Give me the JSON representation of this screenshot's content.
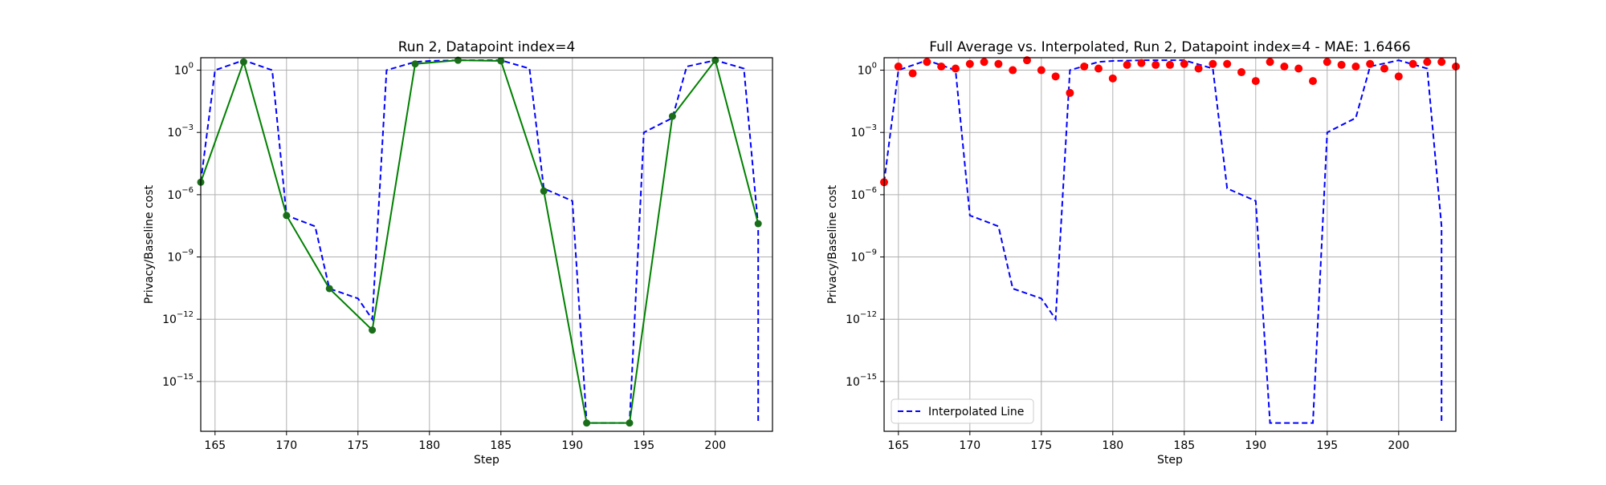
{
  "chart_data": [
    {
      "type": "line",
      "title": "Run 2, Datapoint index=4",
      "xlabel": "Step",
      "ylabel": "Privacy/Baseline cost",
      "xlim": [
        164,
        204
      ],
      "yscale": "log",
      "ylim_exp": [
        -17.4,
        0.6
      ],
      "grid": true,
      "x_ticks": [
        "165",
        "170",
        "175",
        "180",
        "185",
        "190",
        "195",
        "200"
      ],
      "y_ticks": [
        {
          "base": "10",
          "exp": "0"
        },
        {
          "base": "10",
          "exp": "−3"
        },
        {
          "base": "10",
          "exp": "−6"
        },
        {
          "base": "10",
          "exp": "−9"
        },
        {
          "base": "10",
          "exp": "−12"
        },
        {
          "base": "10",
          "exp": "−15"
        }
      ],
      "series": [
        {
          "style": "dashed",
          "color": "#0000ff",
          "x": [
            164,
            165,
            167,
            169,
            170,
            172,
            173,
            175,
            176,
            177,
            179,
            180,
            182,
            185,
            187,
            188,
            190,
            191,
            194,
            195,
            197,
            198,
            200,
            202,
            203,
            203
          ],
          "y": [
            4e-06,
            1.0,
            3.0,
            1.0,
            1e-07,
            3e-08,
            3e-11,
            1e-11,
            1e-12,
            1.0,
            2.5,
            2.8,
            3.0,
            3.0,
            1.2,
            2e-06,
            5e-07,
            1e-17,
            1e-17,
            0.001,
            0.005,
            1.5,
            3.0,
            1.2,
            3e-08,
            1e-17
          ]
        },
        {
          "style": "solid-markers",
          "color": "#008000",
          "x": [
            164,
            167,
            170,
            173,
            176,
            179,
            182,
            185,
            188,
            191,
            194,
            197,
            200,
            203
          ],
          "y": [
            4e-06,
            2.5,
            1e-07,
            3e-11,
            3e-13,
            2.0,
            3.0,
            2.8,
            1.5e-06,
            1e-17,
            1e-17,
            0.006,
            3.0,
            4e-08
          ]
        }
      ]
    },
    {
      "type": "line",
      "title": "Full Average vs. Interpolated, Run 2, Datapoint index=4 - MAE: 1.6466",
      "xlabel": "Step",
      "ylabel": "Privacy/Baseline cost",
      "xlim": [
        164,
        204
      ],
      "yscale": "log",
      "ylim_exp": [
        -17.4,
        0.6
      ],
      "grid": true,
      "legend": "lower-left",
      "x_ticks": [
        "165",
        "170",
        "175",
        "180",
        "185",
        "190",
        "195",
        "200"
      ],
      "y_ticks": [
        {
          "base": "10",
          "exp": "0"
        },
        {
          "base": "10",
          "exp": "−3"
        },
        {
          "base": "10",
          "exp": "−6"
        },
        {
          "base": "10",
          "exp": "−9"
        },
        {
          "base": "10",
          "exp": "−12"
        },
        {
          "base": "10",
          "exp": "−15"
        }
      ],
      "series": [
        {
          "name": "Interpolated Line",
          "style": "dashed",
          "color": "#0000ff",
          "x": [
            164,
            165,
            167,
            169,
            170,
            172,
            173,
            175,
            176,
            177,
            179,
            180,
            182,
            185,
            187,
            188,
            190,
            191,
            194,
            195,
            197,
            198,
            200,
            202,
            203,
            203
          ],
          "y": [
            4e-06,
            1.0,
            3.0,
            1.0,
            1e-07,
            3e-08,
            3e-11,
            1e-11,
            1e-12,
            1.0,
            2.5,
            2.8,
            3.0,
            3.0,
            1.2,
            2e-06,
            5e-07,
            1e-17,
            1e-17,
            0.001,
            0.005,
            1.5,
            3.0,
            1.2,
            3e-08,
            1e-17
          ]
        },
        {
          "style": "scatter",
          "color": "#ff0000",
          "x": [
            164,
            165,
            166,
            167,
            168,
            169,
            170,
            171,
            172,
            173,
            174,
            175,
            176,
            177,
            178,
            179,
            180,
            181,
            182,
            183,
            184,
            185,
            186,
            187,
            188,
            189,
            190,
            191,
            192,
            193,
            194,
            195,
            196,
            197,
            198,
            199,
            200,
            201,
            202,
            203,
            204
          ],
          "y": [
            4e-06,
            1.5,
            0.7,
            2.5,
            1.5,
            1.2,
            2.0,
            2.5,
            2.0,
            1.0,
            3.0,
            1.0,
            0.5,
            0.08,
            1.5,
            1.2,
            0.4,
            1.8,
            2.2,
            1.8,
            1.8,
            2.0,
            1.2,
            2.0,
            2.0,
            0.8,
            0.3,
            2.5,
            1.5,
            1.2,
            0.3,
            2.5,
            1.8,
            1.5,
            2.0,
            1.2,
            0.5,
            2.0,
            2.5,
            2.5,
            1.5
          ]
        }
      ]
    }
  ]
}
